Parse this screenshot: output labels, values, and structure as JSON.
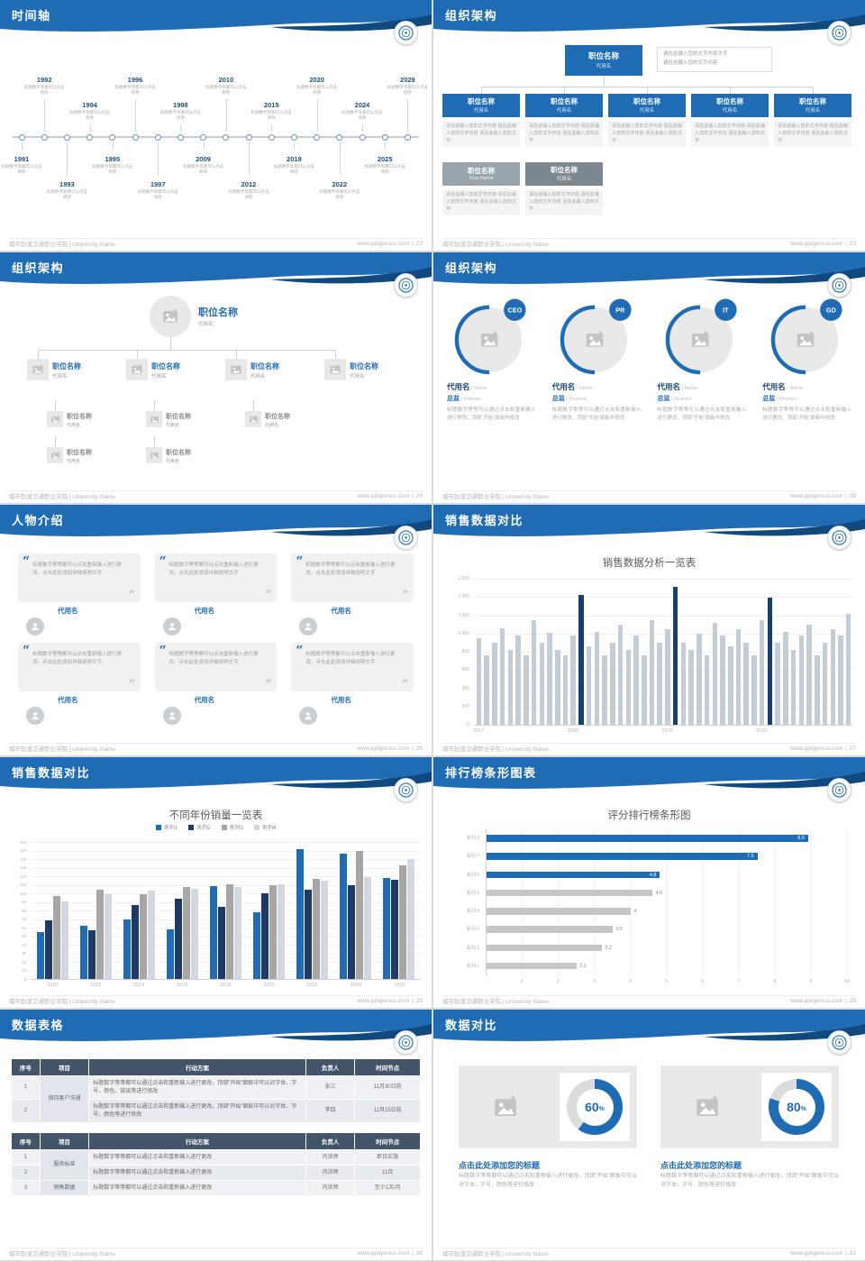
{
  "meta": {
    "accent": "#1f6cb5",
    "accent_dark": "#10497e",
    "navy": "#1f3864",
    "table_header": "#44546a",
    "background": "#d9d9d9"
  },
  "footer": {
    "left": "城市轨道交通职业学院 | University Name",
    "site": "www.pptgenius.com",
    "sep": "|"
  },
  "slides": {
    "timeline": {
      "title": "时间轴",
      "page": "22",
      "desc": "标题数字等都可以点击修改",
      "entries": [
        {
          "year": "1991",
          "side": "bottom",
          "tier": 1
        },
        {
          "year": "1992",
          "side": "top",
          "tier": 2
        },
        {
          "year": "1993",
          "side": "bottom",
          "tier": 2
        },
        {
          "year": "1994",
          "side": "top",
          "tier": 1
        },
        {
          "year": "1995",
          "side": "bottom",
          "tier": 1
        },
        {
          "year": "1996",
          "side": "top",
          "tier": 2
        },
        {
          "year": "1997",
          "side": "bottom",
          "tier": 2
        },
        {
          "year": "1998",
          "side": "top",
          "tier": 1
        },
        {
          "year": "2009",
          "side": "bottom",
          "tier": 1
        },
        {
          "year": "2010",
          "side": "top",
          "tier": 2
        },
        {
          "year": "2012",
          "side": "bottom",
          "tier": 2
        },
        {
          "year": "2015",
          "side": "top",
          "tier": 1
        },
        {
          "year": "2019",
          "side": "bottom",
          "tier": 1
        },
        {
          "year": "2020",
          "side": "top",
          "tier": 2
        },
        {
          "year": "2022",
          "side": "bottom",
          "tier": 2
        },
        {
          "year": "2024",
          "side": "top",
          "tier": 1
        },
        {
          "year": "2025",
          "side": "bottom",
          "tier": 1
        },
        {
          "year": "2029",
          "side": "top",
          "tier": 2
        }
      ]
    },
    "org1": {
      "title": "组织架构",
      "page": "23",
      "root": {
        "name": "职位名称",
        "sub": "代用名"
      },
      "root_note": [
        "请在此输入您的文字内容文字",
        "请在此输入您的文字内容"
      ],
      "note": "请在此输入您的文字内容 请在此输入您的文字内容 请在此输入您的文字",
      "children": [
        {
          "name": "职位名称",
          "sub": "代用名"
        },
        {
          "name": "职位名称",
          "sub": "代用名"
        },
        {
          "name": "职位名称",
          "sub": "代用名"
        },
        {
          "name": "职位名称",
          "sub": "代用名"
        },
        {
          "name": "职位名称",
          "sub": "代用名"
        }
      ],
      "bottom": [
        {
          "name": "职位名称",
          "sub": "Your Name",
          "color": "#9aa4ac"
        },
        {
          "name": "职位名称",
          "sub": "代用名",
          "color": "#7c878f"
        }
      ]
    },
    "org2": {
      "title": "组织架构",
      "page": "24",
      "root": {
        "name": "职位名称",
        "sub": "代用名"
      },
      "nodes": [
        {
          "name": "职位名称",
          "sub": "代用名"
        },
        {
          "name": "职位名称",
          "sub": "代用名"
        },
        {
          "name": "职位名称",
          "sub": "代用名"
        },
        {
          "name": "职位名称",
          "sub": "代用名"
        }
      ],
      "subnodes_row1": [
        {
          "name": "职位名称",
          "sub": "代用名"
        },
        {
          "name": "职位名称",
          "sub": "代用名"
        },
        {
          "name": "职位名称",
          "sub": "代用名"
        }
      ],
      "subnodes_row2": [
        {
          "name": "职位名称",
          "sub": "代用名"
        },
        {
          "name": "职位名称",
          "sub": "代用名"
        }
      ]
    },
    "org3": {
      "title": "组织架构",
      "page": "25",
      "badges": [
        "CEO",
        "PR",
        "IT",
        "GD"
      ],
      "name": "代用名",
      "name_en": "Name",
      "role": "总监",
      "role_en": "Director",
      "desc": "标题数字等等可以通过点击和重新输入进行更改，顶部“开始”面板中修改"
    },
    "people": {
      "title": "人物介绍",
      "page": "26",
      "count": 6,
      "quote_open": "“",
      "quote_close": "”",
      "quote": "标题数字等等都可以点击重新输入进行更改，点击此处添加详细说明文字",
      "name": "代用名"
    },
    "sales1": {
      "title": "销售数据对比",
      "page": "27"
    },
    "sales2": {
      "title": "销售数据对比",
      "page": "28"
    },
    "rank": {
      "title": "排行榜条形图表",
      "page": "29"
    },
    "tables": {
      "title": "数据表格",
      "page": "30",
      "t1": {
        "headers": [
          "序号",
          "项目",
          "行动方案",
          "负责人",
          "时间节点"
        ],
        "rows": [
          {
            "no": "1",
            "project": "保持客户沟通",
            "project_rowspan": 2,
            "plan": "标题数字等等都可以通过点击和重新输入进行更改，顶部“开始”面板中可以对字体、字号、颜色、链接等进行修改",
            "owner": "张三",
            "time": "11月30日前"
          },
          {
            "no": "2",
            "plan": "标题数字等等都可以通过点击和重新输入进行更改，顶部“开始”面板中可以对字体、字号、颜色等进行修改",
            "owner": "李四",
            "time": "11月15日前"
          }
        ]
      },
      "t2": {
        "headers": [
          "序号",
          "项目",
          "行动方案",
          "负责人",
          "时间节点"
        ],
        "rows": [
          {
            "no": "1",
            "project": "服务标准",
            "project_rowspan": 2,
            "plan": "标题数字等等都可以通过点击和重新输入进行更改",
            "owner": "内训师",
            "time": "即日实施"
          },
          {
            "no": "2",
            "plan": "标题数字等等都可以通过点击和重新输入进行更改",
            "owner": "内训师",
            "time": "11月"
          },
          {
            "no": "3",
            "project": "销售数据",
            "plan": "标题数字等等都可以通过点击和重新输入进行更改",
            "owner": "内训师",
            "time": "至少1次/月"
          }
        ]
      }
    },
    "compare": {
      "title": "数据对比",
      "page": "31",
      "heading": "点击此处添加您的标题",
      "desc": "标题数字等等都可以通过点击和重新输入进行更改，顶部“开始”面板中可以对字体、字号、颜色等进行修改",
      "items": [
        {
          "percent": 60
        },
        {
          "percent": 80
        }
      ]
    }
  },
  "chart_data": [
    {
      "type": "bar",
      "title": "销售数据分析一览表",
      "x_groups": [
        "2017",
        "2018",
        "2019",
        "2020"
      ],
      "x_group_start": [
        0,
        12,
        24,
        36
      ],
      "values": [
        950,
        760,
        900,
        1060,
        820,
        980,
        760,
        1150,
        900,
        1010,
        820,
        760,
        980,
        1420,
        860,
        1020,
        760,
        900,
        1100,
        820,
        980,
        760,
        1150,
        900,
        1050,
        1510,
        900,
        820,
        1000,
        760,
        1120,
        980,
        860,
        1050,
        900,
        760,
        1150,
        1390,
        900,
        1020,
        820,
        980,
        1100,
        760,
        900,
        1050,
        980,
        1210
      ],
      "highlight_indices": [
        13,
        25,
        37
      ],
      "ylim": [
        0,
        1600
      ],
      "ytick_step": 200,
      "yticks": [
        "0",
        "200",
        "400",
        "600",
        "800",
        "1,000",
        "1,200",
        "1,400",
        "1,600"
      ],
      "bar_color": "#c4cdd6",
      "highlight_color": "#17406b",
      "grid": true,
      "legend_position": "none"
    },
    {
      "type": "bar",
      "title": "不同年份销量一览表",
      "categories": [
        "2010",
        "2012",
        "2014",
        "2016",
        "2018",
        "2020",
        "2022",
        "2024",
        "2026"
      ],
      "series": [
        {
          "name": "系列1",
          "color": "#1f6cb5",
          "values": [
            55,
            62,
            70,
            58,
            108,
            78,
            152,
            146,
            118
          ]
        },
        {
          "name": "系列2",
          "color": "#1f3864",
          "values": [
            68,
            57,
            86,
            94,
            84,
            100,
            104,
            110,
            116
          ]
        },
        {
          "name": "系列3",
          "color": "#a6a6a6",
          "values": [
            97,
            104,
            99,
            107,
            111,
            109,
            117,
            149,
            133
          ]
        },
        {
          "name": "系列4",
          "color": "#d2d8de",
          "values": [
            91,
            99,
            103,
            105,
            107,
            111,
            115,
            119,
            140
          ]
        }
      ],
      "ylim": [
        0,
        160
      ],
      "ytick_step": 10,
      "yticks": [
        "0",
        "10",
        "20",
        "30",
        "40",
        "50",
        "60",
        "70",
        "80",
        "90",
        "100",
        "110",
        "120",
        "130",
        "140",
        "150",
        "160"
      ],
      "grid": true,
      "legend_position": "top"
    },
    {
      "type": "bar_horizontal",
      "title": "评分排行榜条形图",
      "categories": [
        "系列 8",
        "系列 7",
        "系列 6",
        "系列 5",
        "系列 4",
        "系列 3",
        "系列 2",
        "系列 1"
      ],
      "values": [
        8.9,
        7.5,
        4.8,
        4.6,
        4,
        3.5,
        3.2,
        2.5
      ],
      "labels": [
        "8.9",
        "7.5",
        "4.8",
        "4.6",
        "4",
        "3.5",
        "3.2",
        "2.5"
      ],
      "colors": [
        "#1f6cb5",
        "#1f6cb5",
        "#1f6cb5",
        "#c6c6c6",
        "#c6c6c6",
        "#c6c6c6",
        "#c6c6c6",
        "#c6c6c6"
      ],
      "xlim": [
        0,
        10
      ],
      "xticks": [
        1,
        2,
        3,
        4,
        5,
        6,
        7,
        8,
        9,
        10
      ],
      "grid": true,
      "legend_position": "none"
    },
    {
      "type": "donut",
      "values": [
        60,
        80
      ],
      "labels": [
        "60%",
        "80%"
      ],
      "color": "#1f6cb5",
      "track_color": "#dcdcdc"
    }
  ]
}
